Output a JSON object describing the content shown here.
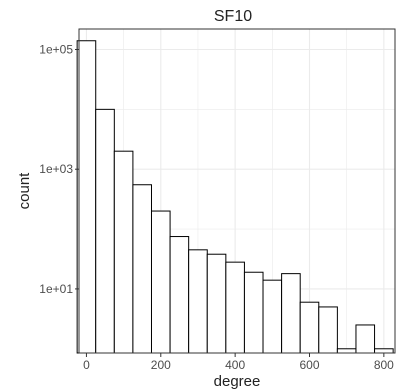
{
  "chart_data": {
    "type": "bar",
    "title": "SF10",
    "xlabel": "degree",
    "ylabel": "count",
    "x_ticks": [
      0,
      200,
      400,
      600,
      800
    ],
    "x_tick_labels": [
      "0",
      "200",
      "400",
      "600",
      "800"
    ],
    "y_scale": "log10",
    "y_ticks": [
      10,
      1000,
      100000
    ],
    "y_tick_labels": [
      "1e+01",
      "1e+03",
      "1e+05"
    ],
    "xlim": [
      -20,
      830
    ],
    "ylim": [
      0.85,
      220000
    ],
    "grid": true,
    "bin_width": 50,
    "bins": [
      {
        "x0": -25,
        "x1": 25,
        "count": 140000
      },
      {
        "x0": 25,
        "x1": 75,
        "count": 10000
      },
      {
        "x0": 75,
        "x1": 125,
        "count": 2000
      },
      {
        "x0": 125,
        "x1": 175,
        "count": 550
      },
      {
        "x0": 175,
        "x1": 225,
        "count": 200
      },
      {
        "x0": 225,
        "x1": 275,
        "count": 75
      },
      {
        "x0": 275,
        "x1": 325,
        "count": 45
      },
      {
        "x0": 325,
        "x1": 375,
        "count": 38
      },
      {
        "x0": 375,
        "x1": 425,
        "count": 28
      },
      {
        "x0": 425,
        "x1": 475,
        "count": 19
      },
      {
        "x0": 475,
        "x1": 525,
        "count": 14
      },
      {
        "x0": 525,
        "x1": 575,
        "count": 18
      },
      {
        "x0": 575,
        "x1": 625,
        "count": 6
      },
      {
        "x0": 625,
        "x1": 675,
        "count": 5
      },
      {
        "x0": 675,
        "x1": 725,
        "count": 1
      },
      {
        "x0": 725,
        "x1": 775,
        "count": 2.5
      },
      {
        "x0": 775,
        "x1": 825,
        "count": 1
      }
    ],
    "colors": {
      "bar_fill": "#ffffff",
      "bar_stroke": "#000000",
      "grid": "#ebebeb",
      "panel_border": "#333333",
      "text": "#222222",
      "tick_text": "#4d4d4d"
    }
  }
}
